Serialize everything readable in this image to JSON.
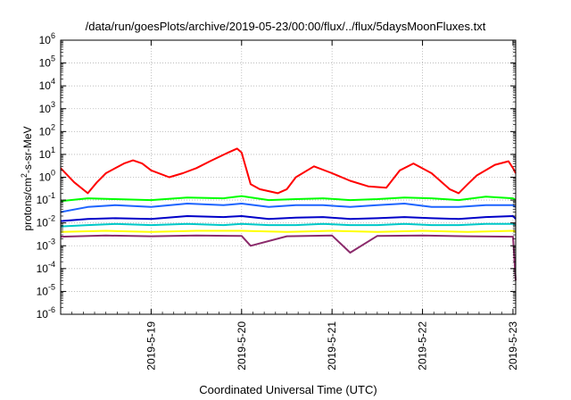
{
  "chart_data": {
    "type": "line",
    "title": "/data/run/goesPlots/archive/2019-05-23/00:00/flux/../flux/5daysMoonFluxes.txt",
    "xlabel": "Coordinated Universal Time (UTC)",
    "ylabel_main": "protons/cm",
    "ylabel_sup": "2",
    "ylabel_rest": "-s-sr-MeV",
    "y_scale": "log",
    "ylim": [
      1e-06,
      1000000.0
    ],
    "y_ticks": [
      {
        "exp": -6,
        "base": "10",
        "sup": "-6"
      },
      {
        "exp": -5,
        "base": "10",
        "sup": "-5"
      },
      {
        "exp": -4,
        "base": "10",
        "sup": "-4"
      },
      {
        "exp": -3,
        "base": "10",
        "sup": "-3"
      },
      {
        "exp": -2,
        "base": "10",
        "sup": "-2"
      },
      {
        "exp": -1,
        "base": "10",
        "sup": "-1"
      },
      {
        "exp": 0,
        "base": "10",
        "sup": "0"
      },
      {
        "exp": 1,
        "base": "10",
        "sup": "1"
      },
      {
        "exp": 2,
        "base": "10",
        "sup": "2"
      },
      {
        "exp": 3,
        "base": "10",
        "sup": "3"
      },
      {
        "exp": 4,
        "base": "10",
        "sup": "4"
      },
      {
        "exp": 5,
        "base": "10",
        "sup": "5"
      },
      {
        "exp": 6,
        "base": "10",
        "sup": "6"
      }
    ],
    "x_ticks": [
      {
        "label": "2019-5-19",
        "day": 1
      },
      {
        "label": "2019-5-20",
        "day": 2
      },
      {
        "label": "2019-5-21",
        "day": 3
      },
      {
        "label": "2019-5-22",
        "day": 4
      },
      {
        "label": "2019-5-23",
        "day": 5
      }
    ],
    "x_range_days": [
      0,
      5.03
    ],
    "grid": true,
    "series": [
      {
        "color": "#ff0000",
        "x": [
          0,
          0.15,
          0.3,
          0.4,
          0.5,
          0.7,
          0.8,
          0.9,
          1.0,
          1.2,
          1.35,
          1.5,
          1.65,
          1.85,
          1.95,
          2.0,
          2.1,
          2.2,
          2.4,
          2.5,
          2.6,
          2.8,
          3.0,
          3.2,
          3.4,
          3.6,
          3.75,
          3.9,
          4.1,
          4.3,
          4.4,
          4.5,
          4.6,
          4.8,
          4.95,
          5.0,
          5.03
        ],
        "y": [
          2.5,
          0.6,
          0.2,
          0.6,
          1.5,
          4.0,
          5.5,
          4.0,
          2.0,
          1.0,
          1.5,
          2.5,
          5.0,
          12,
          18,
          12,
          0.5,
          0.3,
          0.2,
          0.3,
          1.0,
          3.0,
          1.5,
          0.7,
          0.4,
          0.35,
          2.0,
          4.0,
          1.5,
          0.3,
          0.2,
          0.5,
          1.2,
          3.5,
          5.0,
          2.5,
          1.5
        ]
      },
      {
        "color": "#00ff00",
        "x": [
          0,
          0.3,
          0.6,
          1.0,
          1.4,
          1.8,
          2.0,
          2.3,
          2.6,
          2.9,
          3.2,
          3.5,
          3.8,
          4.1,
          4.4,
          4.7,
          5.0,
          5.03
        ],
        "y": [
          0.09,
          0.12,
          0.11,
          0.1,
          0.13,
          0.12,
          0.15,
          0.1,
          0.11,
          0.12,
          0.1,
          0.11,
          0.13,
          0.12,
          0.1,
          0.14,
          0.12,
          0.1
        ]
      },
      {
        "color": "#1e64ff",
        "x": [
          0,
          0.3,
          0.6,
          1.0,
          1.4,
          1.8,
          2.0,
          2.3,
          2.6,
          2.9,
          3.2,
          3.5,
          3.8,
          4.1,
          4.4,
          4.7,
          5.0,
          5.03
        ],
        "y": [
          0.03,
          0.05,
          0.06,
          0.05,
          0.07,
          0.06,
          0.07,
          0.05,
          0.06,
          0.06,
          0.05,
          0.06,
          0.07,
          0.05,
          0.05,
          0.06,
          0.06,
          0.05
        ]
      },
      {
        "color": "#0000c8",
        "x": [
          0,
          0.3,
          0.6,
          1.0,
          1.4,
          1.8,
          2.0,
          2.3,
          2.6,
          2.9,
          3.2,
          3.5,
          3.8,
          4.1,
          4.4,
          4.7,
          5.0,
          5.03
        ],
        "y": [
          0.012,
          0.015,
          0.016,
          0.015,
          0.02,
          0.018,
          0.02,
          0.015,
          0.017,
          0.018,
          0.015,
          0.016,
          0.018,
          0.016,
          0.015,
          0.018,
          0.02,
          0.015
        ]
      },
      {
        "color": "#00c8c8",
        "x": [
          0,
          0.3,
          0.6,
          1.0,
          1.4,
          1.8,
          2.0,
          2.3,
          2.6,
          2.9,
          3.2,
          3.5,
          3.8,
          4.1,
          4.4,
          4.7,
          5.0,
          5.03
        ],
        "y": [
          0.007,
          0.008,
          0.009,
          0.008,
          0.009,
          0.008,
          0.009,
          0.008,
          0.008,
          0.009,
          0.008,
          0.008,
          0.009,
          0.008,
          0.008,
          0.009,
          0.009,
          0.008
        ]
      },
      {
        "color": "#ffff00",
        "x": [
          0,
          0.5,
          1.0,
          1.5,
          2.0,
          2.5,
          3.0,
          3.5,
          4.0,
          4.5,
          5.0,
          5.03
        ],
        "y": [
          0.004,
          0.0045,
          0.004,
          0.0045,
          0.0045,
          0.004,
          0.0045,
          0.004,
          0.0045,
          0.004,
          0.0045,
          0.004
        ]
      },
      {
        "color": "#8b2a6b",
        "x": [
          0,
          0.5,
          1.0,
          1.5,
          2.0,
          2.1,
          2.5,
          3.0,
          3.2,
          3.5,
          4.0,
          4.5,
          5.0,
          5.03
        ],
        "y": [
          0.0025,
          0.0028,
          0.0026,
          0.0028,
          0.0027,
          0.001,
          0.0026,
          0.0028,
          0.0005,
          0.0027,
          0.0028,
          0.0026,
          0.0025,
          3e-05
        ]
      }
    ]
  }
}
